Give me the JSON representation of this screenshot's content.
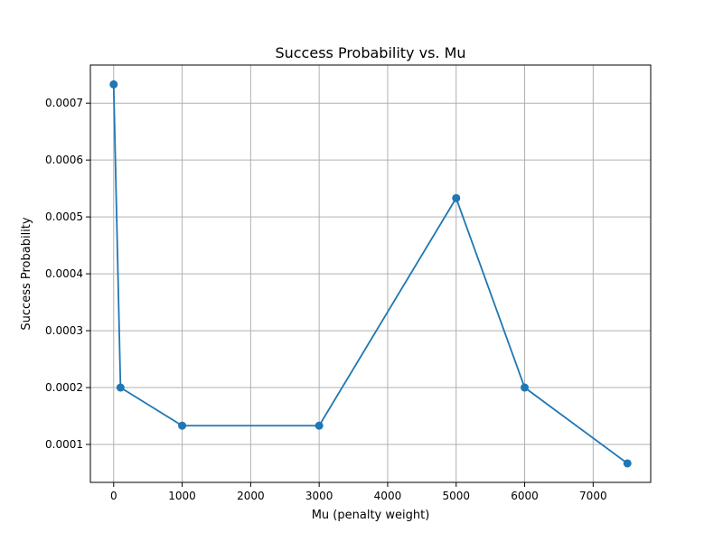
{
  "chart_data": {
    "type": "line",
    "title": "Success Probability vs. Mu",
    "xlabel": "Mu (penalty weight)",
    "ylabel": "Success Probability",
    "x": [
      0,
      100,
      1000,
      3000,
      5000,
      6000,
      7500
    ],
    "series": [
      {
        "values": [
          0.000733,
          0.0002,
          0.000133,
          0.000133,
          0.000533,
          0.0002,
          6.67e-05
        ],
        "color": "#1f77b4",
        "marker": "circle"
      }
    ],
    "xlim": [
      -340,
      7840
    ],
    "ylim": [
      3.33e-05,
      0.000767
    ],
    "xticks": [
      0,
      1000,
      2000,
      3000,
      4000,
      5000,
      6000,
      7000
    ],
    "xtick_labels": [
      "0",
      "1000",
      "2000",
      "3000",
      "4000",
      "5000",
      "6000",
      "7000"
    ],
    "yticks": [
      0.0001,
      0.0002,
      0.0003,
      0.0004,
      0.0005,
      0.0006,
      0.0007
    ],
    "ytick_labels": [
      "0.0001",
      "0.0002",
      "0.0003",
      "0.0004",
      "0.0005",
      "0.0006",
      "0.0007"
    ],
    "grid": true
  }
}
